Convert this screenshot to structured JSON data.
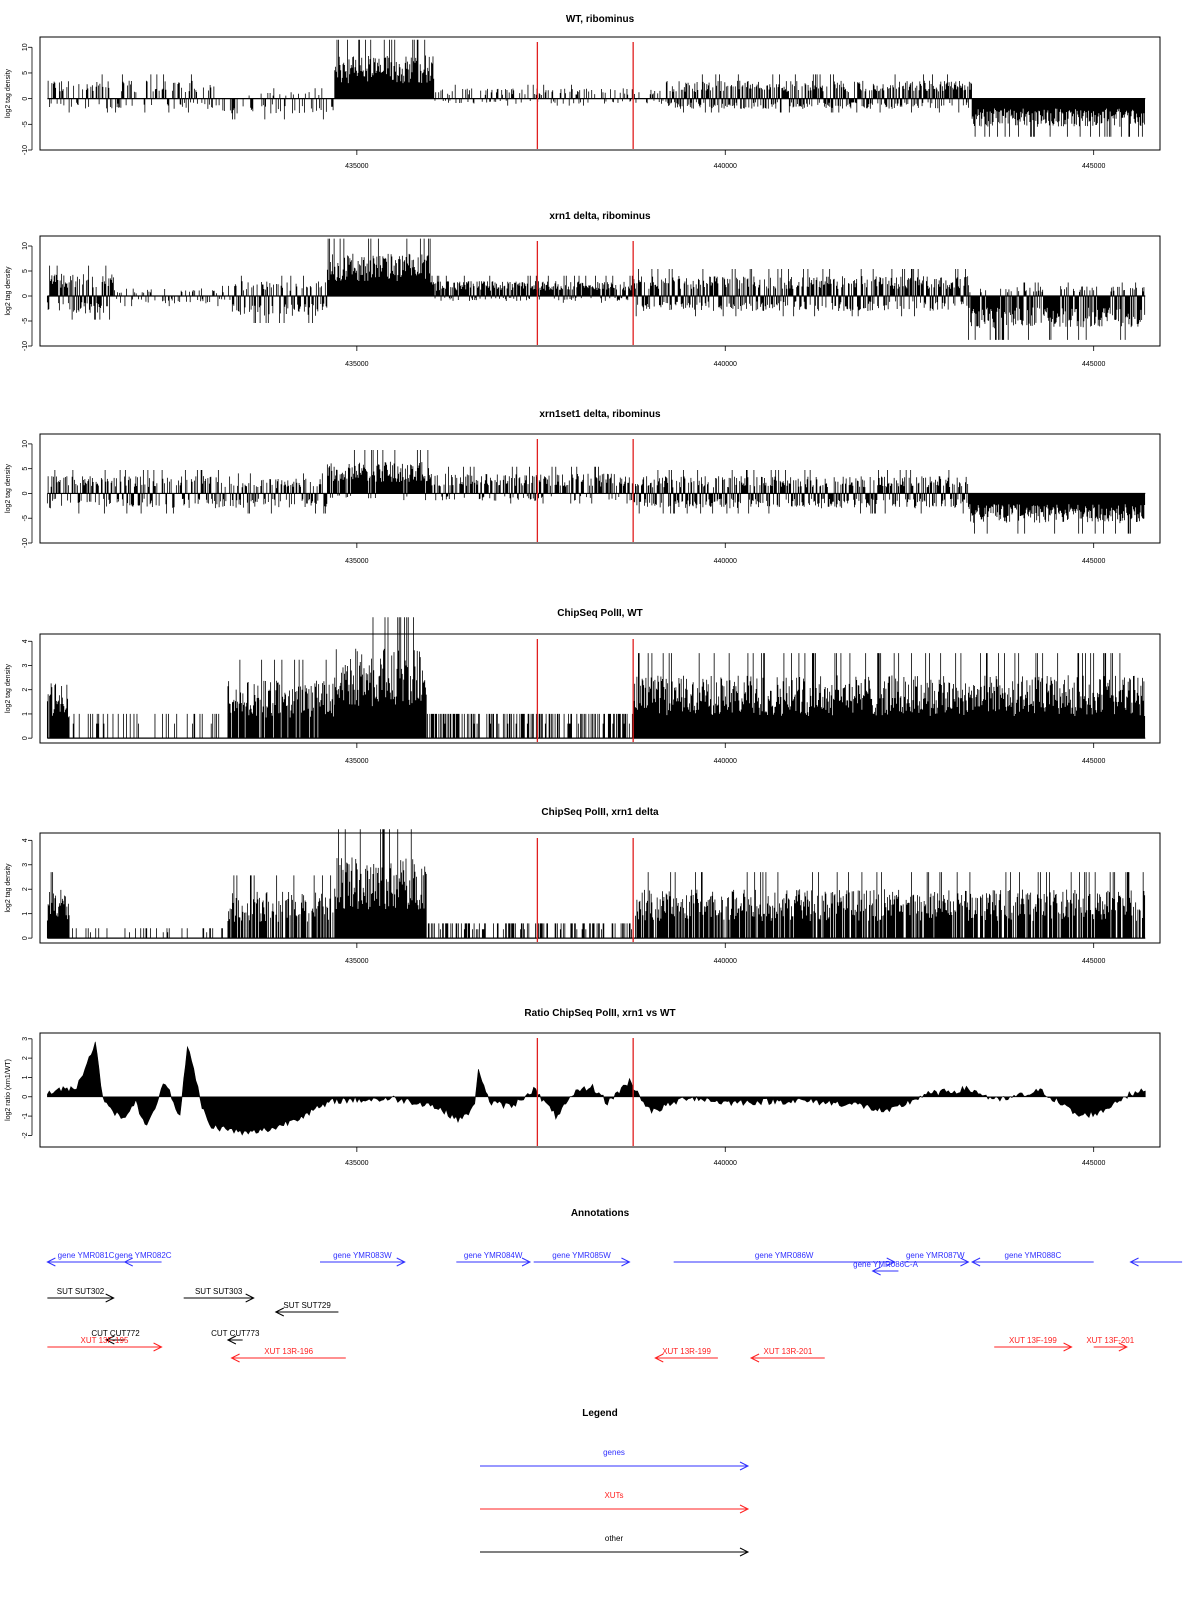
{
  "chart_data": [
    {
      "type": "area",
      "title": "WT, ribominus",
      "xlabel": "",
      "ylabel": "log2 tag density",
      "xlim": [
        430700,
        445900
      ],
      "ylim": [
        -10,
        12
      ],
      "yticks": [
        -10,
        -5,
        0,
        5,
        10
      ],
      "xticks": [
        435000,
        440000,
        445000
      ],
      "markers": [
        437450,
        438750
      ],
      "regions": [
        {
          "start": 430800,
          "end": 433100,
          "min": -2.0,
          "max": 3.5,
          "density": 0.55,
          "noise": 1.0
        },
        {
          "start": 433100,
          "end": 434700,
          "min": -3.0,
          "max": 1.5,
          "density": 0.3,
          "noise": 1.0
        },
        {
          "start": 434700,
          "end": 436050,
          "min": 0,
          "max": 8.5,
          "density": 1.0,
          "noise": 1.0
        },
        {
          "start": 436050,
          "end": 439200,
          "min": -1.0,
          "max": 2.0,
          "density": 0.4,
          "noise": 1.0
        },
        {
          "start": 439200,
          "end": 443350,
          "min": -2.0,
          "max": 3.5,
          "density": 1.0,
          "noise": 1.0
        },
        {
          "start": 443350,
          "end": 445700,
          "min": -5.5,
          "max": 0.5,
          "density": 1.0,
          "noise": 1.0
        }
      ]
    },
    {
      "type": "area",
      "title": "xrn1 delta, ribominus",
      "xlabel": "",
      "ylabel": "log2 tag density",
      "xlim": [
        430700,
        445900
      ],
      "ylim": [
        -10,
        12
      ],
      "yticks": [
        -10,
        -5,
        0,
        5,
        10
      ],
      "xticks": [
        435000,
        440000,
        445000
      ],
      "markers": [
        437450,
        438750
      ],
      "regions": [
        {
          "start": 430800,
          "end": 431700,
          "min": -3.5,
          "max": 4.5,
          "density": 1.0,
          "noise": 1.0
        },
        {
          "start": 431700,
          "end": 433300,
          "min": -1.5,
          "max": 1.5,
          "density": 0.4,
          "noise": 1.0
        },
        {
          "start": 433300,
          "end": 434600,
          "min": -4.0,
          "max": 3.0,
          "density": 0.8,
          "noise": 1.0
        },
        {
          "start": 434600,
          "end": 436000,
          "min": 0,
          "max": 8.5,
          "density": 1.0,
          "noise": 1.0
        },
        {
          "start": 436000,
          "end": 438750,
          "min": -1.0,
          "max": 3.0,
          "density": 1.0,
          "noise": 1.0
        },
        {
          "start": 438750,
          "end": 443300,
          "min": -3.0,
          "max": 4.0,
          "density": 1.0,
          "noise": 1.0
        },
        {
          "start": 443300,
          "end": 445700,
          "min": -6.5,
          "max": 2.0,
          "density": 1.0,
          "noise": 1.0
        }
      ]
    },
    {
      "type": "area",
      "title": "xrn1set1 delta, ribominus",
      "xlabel": "",
      "ylabel": "log2 tag density",
      "xlim": [
        430700,
        445900
      ],
      "ylim": [
        -10,
        12
      ],
      "yticks": [
        -10,
        -5,
        0,
        5,
        10
      ],
      "xticks": [
        435000,
        440000,
        445000
      ],
      "markers": [
        437450,
        438750
      ],
      "regions": [
        {
          "start": 430800,
          "end": 433300,
          "min": -3.0,
          "max": 3.5,
          "density": 0.75,
          "noise": 1.0
        },
        {
          "start": 433300,
          "end": 434600,
          "min": -3.0,
          "max": 3.0,
          "density": 0.8,
          "noise": 1.0
        },
        {
          "start": 434600,
          "end": 436000,
          "min": -1.0,
          "max": 6.5,
          "density": 1.0,
          "noise": 1.0
        },
        {
          "start": 436000,
          "end": 438750,
          "min": -1.5,
          "max": 4.0,
          "density": 0.75,
          "noise": 1.0
        },
        {
          "start": 438750,
          "end": 443300,
          "min": -3.0,
          "max": 3.5,
          "density": 1.0,
          "noise": 1.0
        },
        {
          "start": 443300,
          "end": 445700,
          "min": -6.0,
          "max": 0.5,
          "density": 1.0,
          "noise": 1.0
        }
      ]
    },
    {
      "type": "area",
      "title": "ChipSeq PolII, WT",
      "xlabel": "",
      "ylabel": "log2 tag density",
      "xlim": [
        430700,
        445900
      ],
      "ylim": [
        -0.2,
        4.3
      ],
      "yticks": [
        0,
        1,
        2,
        3,
        4
      ],
      "xticks": [
        435000,
        440000,
        445000
      ],
      "markers": [
        437450,
        438750
      ],
      "regions": [
        {
          "start": 430800,
          "end": 431100,
          "min": 0,
          "max": 2.3,
          "density": 0.9,
          "noise": 1.0
        },
        {
          "start": 431100,
          "end": 433250,
          "min": 0,
          "max": 1.0,
          "density": 0.18,
          "noise": 0.0
        },
        {
          "start": 433250,
          "end": 434700,
          "min": 0,
          "max": 2.4,
          "density": 0.9,
          "noise": 1.0
        },
        {
          "start": 434700,
          "end": 435950,
          "min": 0,
          "max": 3.7,
          "density": 1.0,
          "noise": 1.0
        },
        {
          "start": 435950,
          "end": 438750,
          "min": 0,
          "max": 1.0,
          "density": 0.45,
          "noise": 0.0
        },
        {
          "start": 438750,
          "end": 445700,
          "min": 0,
          "max": 2.6,
          "density": 1.0,
          "noise": 1.0
        }
      ]
    },
    {
      "type": "area",
      "title": "ChipSeq PolII, xrn1 delta",
      "xlabel": "",
      "ylabel": "log2 tag density",
      "xlim": [
        430700,
        445900
      ],
      "ylim": [
        -0.2,
        4.3
      ],
      "yticks": [
        0,
        1,
        2,
        3,
        4
      ],
      "xticks": [
        435000,
        440000,
        445000
      ],
      "markers": [
        437450,
        438750
      ],
      "regions": [
        {
          "start": 430800,
          "end": 431100,
          "min": 0,
          "max": 2.0,
          "density": 1.0,
          "noise": 1.0
        },
        {
          "start": 431100,
          "end": 433250,
          "min": 0,
          "max": 0.4,
          "density": 0.12,
          "noise": 0.0
        },
        {
          "start": 433250,
          "end": 434700,
          "min": 0,
          "max": 1.9,
          "density": 0.7,
          "noise": 1.0
        },
        {
          "start": 434700,
          "end": 435950,
          "min": 0,
          "max": 3.3,
          "density": 1.0,
          "noise": 1.0
        },
        {
          "start": 435950,
          "end": 438750,
          "min": 0,
          "max": 0.6,
          "density": 0.4,
          "noise": 0.0
        },
        {
          "start": 438750,
          "end": 445700,
          "min": 0,
          "max": 2.0,
          "density": 0.8,
          "noise": 1.0
        }
      ]
    },
    {
      "type": "area",
      "title": "Ratio ChipSeq PolII, xrn1 vs WT",
      "xlabel": "",
      "ylabel": "log2 ratio (xrn1/WT)",
      "xlim": [
        430700,
        445900
      ],
      "ylim": [
        -2.6,
        3.3
      ],
      "yticks": [
        -2,
        -1,
        0,
        1,
        2,
        3
      ],
      "xticks": [
        435000,
        440000,
        445000
      ],
      "markers": [
        437450,
        438750
      ],
      "profile": [
        [
          430800,
          0.2
        ],
        [
          431200,
          0.5
        ],
        [
          431450,
          2.8
        ],
        [
          431550,
          0.0
        ],
        [
          431800,
          -1.2
        ],
        [
          432000,
          -0.3
        ],
        [
          432150,
          -1.6
        ],
        [
          432400,
          0.8
        ],
        [
          432600,
          -1.0
        ],
        [
          432700,
          2.7
        ],
        [
          432900,
          -0.5
        ],
        [
          433000,
          -1.5
        ],
        [
          433500,
          -1.9
        ],
        [
          433900,
          -1.6
        ],
        [
          434300,
          -0.9
        ],
        [
          434700,
          -0.2
        ],
        [
          435500,
          -0.1
        ],
        [
          436000,
          -0.4
        ],
        [
          436400,
          -1.2
        ],
        [
          436600,
          -0.5
        ],
        [
          436650,
          1.5
        ],
        [
          436800,
          -0.3
        ],
        [
          437100,
          -0.5
        ],
        [
          437400,
          0.4
        ],
        [
          437700,
          -1.0
        ],
        [
          438000,
          0.3
        ],
        [
          438200,
          0.5
        ],
        [
          438400,
          -0.3
        ],
        [
          438700,
          0.8
        ],
        [
          439000,
          -0.8
        ],
        [
          439500,
          0.0
        ],
        [
          440000,
          -0.3
        ],
        [
          441000,
          -0.2
        ],
        [
          441800,
          -0.4
        ],
        [
          442200,
          -0.8
        ],
        [
          442700,
          0.1
        ],
        [
          443300,
          0.4
        ],
        [
          443700,
          -0.2
        ],
        [
          444300,
          0.3
        ],
        [
          444800,
          -1.0
        ],
        [
          445100,
          -0.8
        ],
        [
          445400,
          0.0
        ],
        [
          445700,
          0.3
        ]
      ]
    }
  ],
  "annotations": {
    "title": "Annotations",
    "features": [
      {
        "label": "gene YMR081C",
        "start": 430800,
        "end": 431850,
        "strand": "-",
        "row": 0,
        "color": "#3030ff"
      },
      {
        "label": "gene YMR082C",
        "start": 431850,
        "end": 432350,
        "strand": "-",
        "row": 0,
        "color": "#3030ff"
      },
      {
        "label": "gene YMR083W",
        "start": 434500,
        "end": 435650,
        "strand": "+",
        "row": 0,
        "color": "#3030ff"
      },
      {
        "label": "gene YMR084W",
        "start": 436350,
        "end": 437350,
        "strand": "+",
        "row": 0,
        "color": "#3030ff"
      },
      {
        "label": "gene YMR085W",
        "start": 437400,
        "end": 438700,
        "strand": "+",
        "row": 0,
        "color": "#3030ff"
      },
      {
        "label": "gene YMR086W",
        "start": 439300,
        "end": 442300,
        "strand": "+",
        "row": 0,
        "color": "#3030ff"
      },
      {
        "label": "gene YMR087W",
        "start": 442400,
        "end": 443300,
        "strand": "+",
        "row": 0,
        "color": "#3030ff"
      },
      {
        "label": "gene YMR086C-A",
        "start": 442000,
        "end": 442350,
        "strand": "-",
        "row": 1,
        "color": "#3030ff"
      },
      {
        "label": "gene YMR088C",
        "start": 443350,
        "end": 445000,
        "strand": "-",
        "row": 0,
        "color": "#3030ff"
      },
      {
        "label": "",
        "start": 445500,
        "end": 446200,
        "strand": "-",
        "row": 0,
        "color": "#3030ff"
      },
      {
        "label": "SUT SUT302",
        "start": 430800,
        "end": 431700,
        "strand": "+",
        "row": 2,
        "color": "#000000"
      },
      {
        "label": "SUT SUT303",
        "start": 432650,
        "end": 433600,
        "strand": "+",
        "row": 2,
        "color": "#000000"
      },
      {
        "label": "SUT SUT729",
        "start": 433900,
        "end": 434750,
        "strand": "-",
        "row": 3,
        "color": "#000000"
      },
      {
        "label": "CUT CUT772",
        "start": 431600,
        "end": 431850,
        "strand": "-",
        "row": 4,
        "color": "#000000"
      },
      {
        "label": "CUT CUT773",
        "start": 433250,
        "end": 433450,
        "strand": "-",
        "row": 4,
        "color": "#000000"
      },
      {
        "label": "XUT 13F-195",
        "start": 430800,
        "end": 432350,
        "strand": "+",
        "row": 5,
        "color": "#ff2020"
      },
      {
        "label": "XUT 13R-196",
        "start": 433300,
        "end": 434850,
        "strand": "-",
        "row": 6,
        "color": "#ff2020"
      },
      {
        "label": "XUT 13R-199",
        "start": 439050,
        "end": 439900,
        "strand": "-",
        "row": 6,
        "color": "#ff2020"
      },
      {
        "label": "XUT 13R-201",
        "start": 440350,
        "end": 441350,
        "strand": "-",
        "row": 6,
        "color": "#ff2020"
      },
      {
        "label": "XUT 13F-199",
        "start": 443650,
        "end": 444700,
        "strand": "+",
        "row": 5,
        "color": "#ff2020"
      },
      {
        "label": "XUT 13F-201",
        "start": 445000,
        "end": 445450,
        "strand": "+",
        "row": 5,
        "color": "#ff2020"
      }
    ]
  },
  "legend": {
    "title": "Legend",
    "items": [
      {
        "label": "genes",
        "color": "#3030ff"
      },
      {
        "label": "XUTs",
        "color": "#ff2020"
      },
      {
        "label": "other",
        "color": "#000000"
      }
    ]
  },
  "colors": {
    "signal": "#000000",
    "marker": "#e02020",
    "axis": "#000000"
  }
}
